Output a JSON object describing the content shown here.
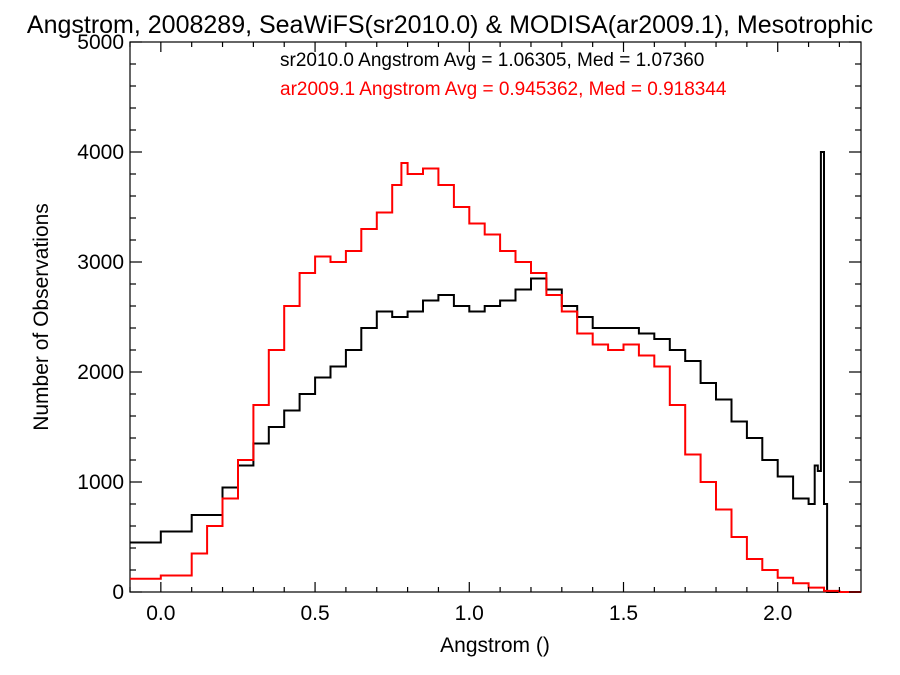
{
  "chart_data": {
    "type": "line",
    "title": "Angstrom, 2008289, SeaWiFS(sr2010.0) & MODISA(ar2009.1), Mesotrophic",
    "xlabel": "Angstrom ()",
    "ylabel": "Number of Observations",
    "xlim": [
      -0.1,
      2.27
    ],
    "ylim": [
      0,
      5000
    ],
    "x_ticks": [
      0.0,
      0.5,
      1.0,
      1.5,
      2.0
    ],
    "x_tick_labels": [
      "0.0",
      "0.5",
      "1.0",
      "1.5",
      "2.0"
    ],
    "y_ticks": [
      0,
      1000,
      2000,
      3000,
      4000,
      5000
    ],
    "y_tick_labels": [
      "0",
      "1000",
      "2000",
      "3000",
      "4000",
      "5000"
    ],
    "grid": false,
    "legend": "top-right",
    "series": [
      {
        "name": "sr2010.0 Angstrom Avg = 1.06305, Med = 1.07360",
        "color": "#000000",
        "style": "step",
        "points": [
          [
            -0.1,
            450
          ],
          [
            0.0,
            550
          ],
          [
            0.1,
            700
          ],
          [
            0.2,
            950
          ],
          [
            0.25,
            1150
          ],
          [
            0.3,
            1350
          ],
          [
            0.35,
            1500
          ],
          [
            0.4,
            1650
          ],
          [
            0.45,
            1800
          ],
          [
            0.5,
            1950
          ],
          [
            0.55,
            2050
          ],
          [
            0.6,
            2200
          ],
          [
            0.65,
            2400
          ],
          [
            0.7,
            2550
          ],
          [
            0.75,
            2500
          ],
          [
            0.8,
            2550
          ],
          [
            0.85,
            2650
          ],
          [
            0.9,
            2700
          ],
          [
            0.95,
            2600
          ],
          [
            1.0,
            2550
          ],
          [
            1.05,
            2600
          ],
          [
            1.1,
            2650
          ],
          [
            1.15,
            2750
          ],
          [
            1.2,
            2850
          ],
          [
            1.25,
            2750
          ],
          [
            1.3,
            2600
          ],
          [
            1.35,
            2500
          ],
          [
            1.4,
            2400
          ],
          [
            1.45,
            2400
          ],
          [
            1.5,
            2400
          ],
          [
            1.55,
            2350
          ],
          [
            1.6,
            2300
          ],
          [
            1.65,
            2200
          ],
          [
            1.7,
            2100
          ],
          [
            1.75,
            1900
          ],
          [
            1.8,
            1750
          ],
          [
            1.85,
            1550
          ],
          [
            1.9,
            1400
          ],
          [
            1.95,
            1200
          ],
          [
            2.0,
            1050
          ],
          [
            2.05,
            850
          ],
          [
            2.1,
            800
          ],
          [
            2.12,
            1150
          ],
          [
            2.13,
            1100
          ],
          [
            2.14,
            4000
          ],
          [
            2.15,
            800
          ],
          [
            2.16,
            0
          ],
          [
            2.27,
            0
          ]
        ]
      },
      {
        "name": "ar2009.1 Angstrom Avg = 0.945362, Med = 0.918344",
        "color": "#ff0000",
        "style": "step",
        "points": [
          [
            -0.1,
            120
          ],
          [
            0.0,
            150
          ],
          [
            0.1,
            350
          ],
          [
            0.15,
            600
          ],
          [
            0.2,
            850
          ],
          [
            0.25,
            1200
          ],
          [
            0.3,
            1700
          ],
          [
            0.35,
            2200
          ],
          [
            0.4,
            2600
          ],
          [
            0.45,
            2900
          ],
          [
            0.5,
            3050
          ],
          [
            0.55,
            3000
          ],
          [
            0.6,
            3100
          ],
          [
            0.65,
            3300
          ],
          [
            0.7,
            3450
          ],
          [
            0.75,
            3700
          ],
          [
            0.78,
            3900
          ],
          [
            0.8,
            3800
          ],
          [
            0.85,
            3850
          ],
          [
            0.9,
            3700
          ],
          [
            0.95,
            3500
          ],
          [
            1.0,
            3350
          ],
          [
            1.05,
            3250
          ],
          [
            1.1,
            3100
          ],
          [
            1.15,
            3000
          ],
          [
            1.2,
            2900
          ],
          [
            1.25,
            2700
          ],
          [
            1.3,
            2550
          ],
          [
            1.35,
            2350
          ],
          [
            1.4,
            2250
          ],
          [
            1.45,
            2200
          ],
          [
            1.5,
            2250
          ],
          [
            1.55,
            2150
          ],
          [
            1.6,
            2050
          ],
          [
            1.65,
            1700
          ],
          [
            1.7,
            1250
          ],
          [
            1.75,
            1000
          ],
          [
            1.8,
            750
          ],
          [
            1.85,
            500
          ],
          [
            1.9,
            300
          ],
          [
            1.95,
            200
          ],
          [
            2.0,
            130
          ],
          [
            2.05,
            80
          ],
          [
            2.1,
            40
          ],
          [
            2.15,
            10
          ],
          [
            2.2,
            0
          ],
          [
            2.27,
            0
          ]
        ]
      }
    ]
  }
}
